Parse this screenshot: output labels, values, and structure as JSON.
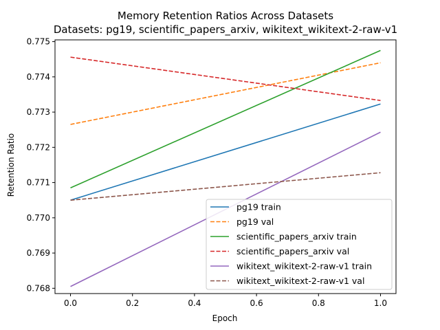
{
  "chart_data": {
    "type": "line",
    "title": "Memory Retention Ratios Across Datasets",
    "subtitle": "Datasets: pg19, scientific_papers_arxiv, wikitext_wikitext-2-raw-v1",
    "xlabel": "Epoch",
    "ylabel": "Retention Ratio",
    "xlim": [
      -0.05,
      1.05
    ],
    "ylim": [
      0.76785,
      0.77505
    ],
    "xticks": [
      "0.0",
      "0.2",
      "0.4",
      "0.6",
      "0.8",
      "1.0"
    ],
    "yticks": [
      "0.768",
      "0.769",
      "0.770",
      "0.771",
      "0.772",
      "0.773",
      "0.774",
      "0.775"
    ],
    "grid": false,
    "legend_position": "lower-right",
    "x": [
      0.0,
      1.0
    ],
    "series": [
      {
        "name": "pg19 train",
        "values": [
          0.7705,
          0.77323
        ],
        "color": "#1f77b4",
        "dash": "solid"
      },
      {
        "name": "pg19 val",
        "values": [
          0.77265,
          0.7744
        ],
        "color": "#ff7f0e",
        "dash": "dashed"
      },
      {
        "name": "scientific_papers_arxiv train",
        "values": [
          0.77085,
          0.77475
        ],
        "color": "#2ca02c",
        "dash": "solid"
      },
      {
        "name": "scientific_papers_arxiv val",
        "values": [
          0.77456,
          0.77333
        ],
        "color": "#d62728",
        "dash": "dashed"
      },
      {
        "name": "wikitext_wikitext-2-raw-v1 train",
        "values": [
          0.76805,
          0.77243
        ],
        "color": "#9467bd",
        "dash": "solid"
      },
      {
        "name": "wikitext_wikitext-2-raw-v1 val",
        "values": [
          0.7705,
          0.77128
        ],
        "color": "#8c564b",
        "dash": "dashed"
      }
    ]
  }
}
